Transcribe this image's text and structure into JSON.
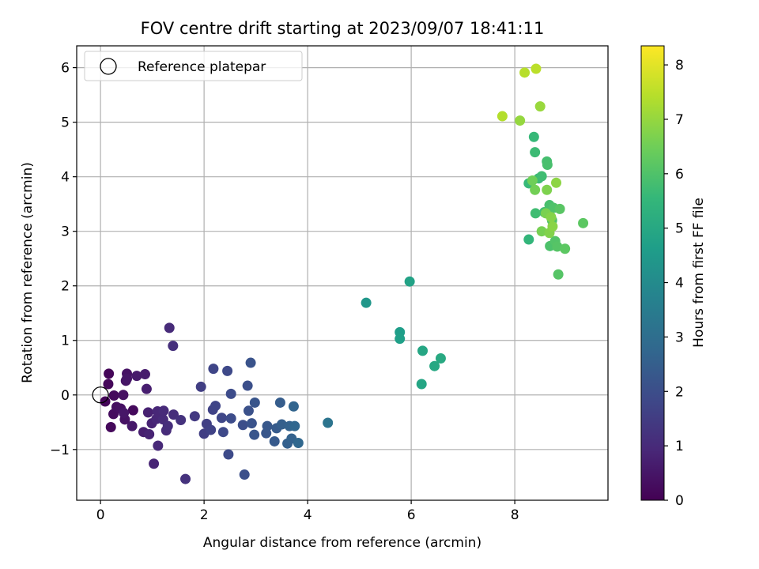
{
  "chart_data": {
    "type": "scatter",
    "title": "FOV centre drift starting at 2023/09/07 18:41:11",
    "xlabel": "Angular distance from reference (arcmin)",
    "ylabel": "Rotation from reference (arcmin)",
    "xlim": [
      -0.46,
      9.8
    ],
    "ylim": [
      -1.93,
      6.4
    ],
    "xticks": [
      0,
      2,
      4,
      6,
      8
    ],
    "yticks": [
      -1,
      0,
      1,
      2,
      3,
      4,
      5,
      6
    ],
    "xtick_labels": [
      "0",
      "2",
      "4",
      "6",
      "8"
    ],
    "ytick_labels": [
      "−1",
      "0",
      "1",
      "2",
      "3",
      "4",
      "5",
      "6"
    ],
    "grid": true,
    "legend": {
      "label": "Reference platepar",
      "marker": "open-circle",
      "location": "upper-left"
    },
    "reference_point": {
      "x": 0.0,
      "y": 0.0
    },
    "colorbar": {
      "label": "Hours from first FF file",
      "colormap": "viridis",
      "range": [
        0,
        8.35
      ],
      "ticks": [
        0,
        1,
        2,
        3,
        4,
        5,
        6,
        7,
        8
      ],
      "tick_labels": [
        "0",
        "1",
        "2",
        "3",
        "4",
        "5",
        "6",
        "7",
        "8"
      ],
      "colors": [
        "#440154",
        "#482878",
        "#3e4989",
        "#31688e",
        "#26828e",
        "#1f9e89",
        "#35b779",
        "#6ece58",
        "#b5de2b",
        "#fde725"
      ]
    },
    "points": [
      {
        "x": 0.09,
        "y": -0.12,
        "t": 0.1
      },
      {
        "x": 0.16,
        "y": 0.39,
        "t": 0.12
      },
      {
        "x": 0.15,
        "y": 0.2,
        "t": 0.15
      },
      {
        "x": 0.2,
        "y": -0.59,
        "t": 0.18
      },
      {
        "x": 0.26,
        "y": -0.01,
        "t": 0.2
      },
      {
        "x": 0.25,
        "y": -0.35,
        "t": 0.25
      },
      {
        "x": 0.31,
        "y": -0.22,
        "t": 0.3
      },
      {
        "x": 0.39,
        "y": -0.25,
        "t": 0.35
      },
      {
        "x": 0.44,
        "y": 0.0,
        "t": 0.35
      },
      {
        "x": 0.47,
        "y": -0.45,
        "t": 0.4
      },
      {
        "x": 0.51,
        "y": 0.39,
        "t": 0.4
      },
      {
        "x": 0.49,
        "y": 0.26,
        "t": 0.45
      },
      {
        "x": 0.51,
        "y": 0.3,
        "t": 0.5
      },
      {
        "x": 0.45,
        "y": -0.33,
        "t": 0.5
      },
      {
        "x": 0.61,
        "y": -0.57,
        "t": 0.55
      },
      {
        "x": 0.63,
        "y": -0.28,
        "t": 0.2
      },
      {
        "x": 0.7,
        "y": 0.35,
        "t": 0.6
      },
      {
        "x": 0.83,
        "y": -0.68,
        "t": 0.7
      },
      {
        "x": 0.86,
        "y": 0.38,
        "t": 0.65
      },
      {
        "x": 0.89,
        "y": 0.11,
        "t": 0.7
      },
      {
        "x": 0.92,
        "y": -0.32,
        "t": 0.75
      },
      {
        "x": 0.94,
        "y": -0.72,
        "t": 0.8
      },
      {
        "x": 0.99,
        "y": -0.52,
        "t": 0.8
      },
      {
        "x": 1.03,
        "y": -1.26,
        "t": 0.85
      },
      {
        "x": 1.08,
        "y": -0.44,
        "t": 0.9
      },
      {
        "x": 1.1,
        "y": -0.3,
        "t": 0.9
      },
      {
        "x": 1.11,
        "y": -0.93,
        "t": 0.95
      },
      {
        "x": 1.21,
        "y": -0.45,
        "t": 1.0
      },
      {
        "x": 1.22,
        "y": -0.29,
        "t": 1.0
      },
      {
        "x": 1.27,
        "y": -0.65,
        "t": 1.05
      },
      {
        "x": 1.3,
        "y": -0.57,
        "t": 1.1
      },
      {
        "x": 1.33,
        "y": 1.23,
        "t": 1.0
      },
      {
        "x": 1.4,
        "y": 0.9,
        "t": 1.15
      },
      {
        "x": 1.41,
        "y": -0.36,
        "t": 1.1
      },
      {
        "x": 1.55,
        "y": -0.46,
        "t": 1.2
      },
      {
        "x": 1.64,
        "y": -1.54,
        "t": 1.2
      },
      {
        "x": 1.82,
        "y": -0.39,
        "t": 1.4
      },
      {
        "x": 1.94,
        "y": 0.15,
        "t": 1.55
      },
      {
        "x": 2.0,
        "y": -0.71,
        "t": 1.55
      },
      {
        "x": 2.05,
        "y": -0.53,
        "t": 1.6
      },
      {
        "x": 2.13,
        "y": -0.64,
        "t": 1.65
      },
      {
        "x": 2.17,
        "y": -0.27,
        "t": 1.7
      },
      {
        "x": 2.18,
        "y": 0.48,
        "t": 1.75
      },
      {
        "x": 2.22,
        "y": -0.2,
        "t": 1.75
      },
      {
        "x": 2.34,
        "y": -0.42,
        "t": 1.8
      },
      {
        "x": 2.37,
        "y": -0.68,
        "t": 1.85
      },
      {
        "x": 2.45,
        "y": 0.44,
        "t": 1.85
      },
      {
        "x": 2.47,
        "y": -1.09,
        "t": 1.9
      },
      {
        "x": 2.52,
        "y": 0.02,
        "t": 1.95
      },
      {
        "x": 2.52,
        "y": -0.43,
        "t": 1.95
      },
      {
        "x": 2.75,
        "y": -0.55,
        "t": 2.0
      },
      {
        "x": 2.78,
        "y": -1.46,
        "t": 2.05
      },
      {
        "x": 2.84,
        "y": 0.17,
        "t": 2.05
      },
      {
        "x": 2.86,
        "y": -0.29,
        "t": 2.1
      },
      {
        "x": 2.9,
        "y": 0.59,
        "t": 2.15
      },
      {
        "x": 2.92,
        "y": -0.52,
        "t": 2.15
      },
      {
        "x": 2.97,
        "y": -0.73,
        "t": 2.2
      },
      {
        "x": 2.98,
        "y": -0.14,
        "t": 2.2
      },
      {
        "x": 3.2,
        "y": -0.7,
        "t": 2.25
      },
      {
        "x": 3.22,
        "y": -0.57,
        "t": 2.3
      },
      {
        "x": 3.36,
        "y": -0.85,
        "t": 2.35
      },
      {
        "x": 3.4,
        "y": -0.61,
        "t": 2.4
      },
      {
        "x": 3.47,
        "y": -0.14,
        "t": 2.45
      },
      {
        "x": 3.5,
        "y": -0.54,
        "t": 2.5
      },
      {
        "x": 3.61,
        "y": -0.89,
        "t": 2.55
      },
      {
        "x": 3.65,
        "y": -0.57,
        "t": 2.6
      },
      {
        "x": 3.69,
        "y": -0.8,
        "t": 2.6
      },
      {
        "x": 3.73,
        "y": -0.21,
        "t": 2.7
      },
      {
        "x": 3.75,
        "y": -0.57,
        "t": 2.75
      },
      {
        "x": 3.82,
        "y": -0.88,
        "t": 2.8
      },
      {
        "x": 4.39,
        "y": -0.51,
        "t": 3.2
      },
      {
        "x": 5.13,
        "y": 1.69,
        "t": 4.4
      },
      {
        "x": 5.78,
        "y": 1.15,
        "t": 4.65
      },
      {
        "x": 5.78,
        "y": 1.03,
        "t": 4.7
      },
      {
        "x": 5.97,
        "y": 2.08,
        "t": 4.8
      },
      {
        "x": 6.2,
        "y": 0.2,
        "t": 4.9
      },
      {
        "x": 6.22,
        "y": 0.81,
        "t": 4.95
      },
      {
        "x": 6.45,
        "y": 0.53,
        "t": 5.0
      },
      {
        "x": 6.57,
        "y": 0.67,
        "t": 5.05
      },
      {
        "x": 8.27,
        "y": 2.85,
        "t": 5.5
      },
      {
        "x": 8.27,
        "y": 3.88,
        "t": 5.6
      },
      {
        "x": 8.37,
        "y": 4.73,
        "t": 5.6
      },
      {
        "x": 8.39,
        "y": 4.45,
        "t": 5.7
      },
      {
        "x": 8.4,
        "y": 3.33,
        "t": 5.75
      },
      {
        "x": 8.46,
        "y": 3.97,
        "t": 5.7
      },
      {
        "x": 8.52,
        "y": 4.01,
        "t": 5.75
      },
      {
        "x": 8.57,
        "y": 3.35,
        "t": 5.8
      },
      {
        "x": 8.62,
        "y": 4.28,
        "t": 5.85
      },
      {
        "x": 8.63,
        "y": 4.22,
        "t": 5.9
      },
      {
        "x": 8.67,
        "y": 3.48,
        "t": 5.9
      },
      {
        "x": 8.68,
        "y": 2.73,
        "t": 5.95
      },
      {
        "x": 8.72,
        "y": 3.2,
        "t": 6.0
      },
      {
        "x": 8.75,
        "y": 3.43,
        "t": 6.0
      },
      {
        "x": 8.78,
        "y": 2.82,
        "t": 6.05
      },
      {
        "x": 8.82,
        "y": 2.72,
        "t": 6.1
      },
      {
        "x": 8.84,
        "y": 2.21,
        "t": 6.1
      },
      {
        "x": 8.87,
        "y": 3.41,
        "t": 6.15
      },
      {
        "x": 8.97,
        "y": 2.68,
        "t": 6.2
      },
      {
        "x": 9.32,
        "y": 3.15,
        "t": 6.2
      },
      {
        "x": 8.34,
        "y": 3.93,
        "t": 6.5
      },
      {
        "x": 8.39,
        "y": 3.76,
        "t": 6.55
      },
      {
        "x": 8.52,
        "y": 3.0,
        "t": 6.6
      },
      {
        "x": 8.6,
        "y": 3.33,
        "t": 6.65
      },
      {
        "x": 8.62,
        "y": 3.76,
        "t": 6.7
      },
      {
        "x": 8.67,
        "y": 2.97,
        "t": 6.75
      },
      {
        "x": 8.7,
        "y": 3.26,
        "t": 6.8
      },
      {
        "x": 8.73,
        "y": 3.09,
        "t": 6.85
      },
      {
        "x": 8.8,
        "y": 3.89,
        "t": 6.9
      },
      {
        "x": 8.1,
        "y": 5.03,
        "t": 7.0
      },
      {
        "x": 8.49,
        "y": 5.29,
        "t": 7.05
      },
      {
        "x": 7.76,
        "y": 5.11,
        "t": 7.4
      },
      {
        "x": 8.19,
        "y": 5.91,
        "t": 7.45
      },
      {
        "x": 8.41,
        "y": 5.98,
        "t": 7.5
      }
    ]
  }
}
